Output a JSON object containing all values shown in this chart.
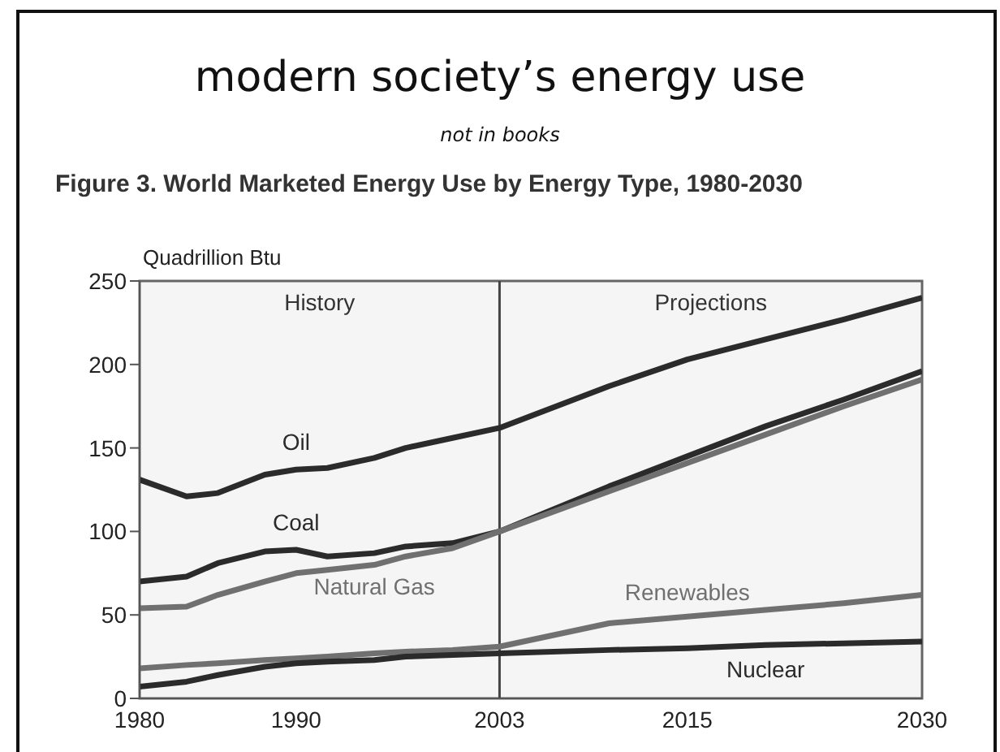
{
  "chart_data": {
    "type": "line",
    "title": "modern society’s energy use",
    "subtitle": "not in books",
    "annotations": [
      "Figure 3.  World Marketed Energy Use by Energy Type, 1980-2030"
    ],
    "ylabel": "Quadrillion Btu",
    "x": [
      1980,
      1983,
      1985,
      1988,
      1990,
      1992,
      1995,
      1997,
      2000,
      2003,
      2010,
      2015,
      2020,
      2025,
      2030
    ],
    "series": [
      {
        "name": "Oil",
        "color": "#2b2b2b",
        "values": [
          131,
          121,
          123,
          134,
          137,
          138,
          144,
          150,
          156,
          162,
          187,
          203,
          215,
          227,
          240
        ]
      },
      {
        "name": "Coal",
        "color": "#2b2b2b",
        "values": [
          70,
          73,
          81,
          88,
          89,
          85,
          87,
          91,
          93,
          100,
          127,
          145,
          163,
          179,
          196
        ]
      },
      {
        "name": "Natural Gas",
        "color": "#707070",
        "values": [
          54,
          55,
          62,
          70,
          75,
          77,
          80,
          85,
          90,
          100,
          124,
          141,
          158,
          175,
          191
        ]
      },
      {
        "name": "Renewables",
        "color": "#707070",
        "values": [
          18,
          20,
          21,
          23,
          24,
          25,
          27,
          28,
          29,
          31,
          45,
          49,
          53,
          57,
          62
        ]
      },
      {
        "name": "Nuclear",
        "color": "#2b2b2b",
        "values": [
          7,
          10,
          14,
          19,
          21,
          22,
          23,
          25,
          26,
          27,
          29,
          30,
          32,
          33,
          34
        ]
      }
    ],
    "xlim": [
      1980,
      2030
    ],
    "xticks": [
      1980,
      1990,
      2003,
      2015,
      2030
    ],
    "ylim": [
      0,
      250
    ],
    "yticks": [
      0,
      50,
      100,
      150,
      200,
      250
    ],
    "ref_lines": [
      {
        "axis": "x",
        "value": 2003,
        "color": "#444444"
      }
    ],
    "bands": [
      {
        "axis": "x",
        "from": 1980,
        "to": 2003,
        "label": "History",
        "color": "#ececec"
      },
      {
        "axis": "x",
        "from": 2003,
        "to": 2030,
        "label": "Projections",
        "color": "#ececec"
      }
    ],
    "grid": false,
    "legend": false,
    "marker": "none",
    "line_style": "solid"
  }
}
